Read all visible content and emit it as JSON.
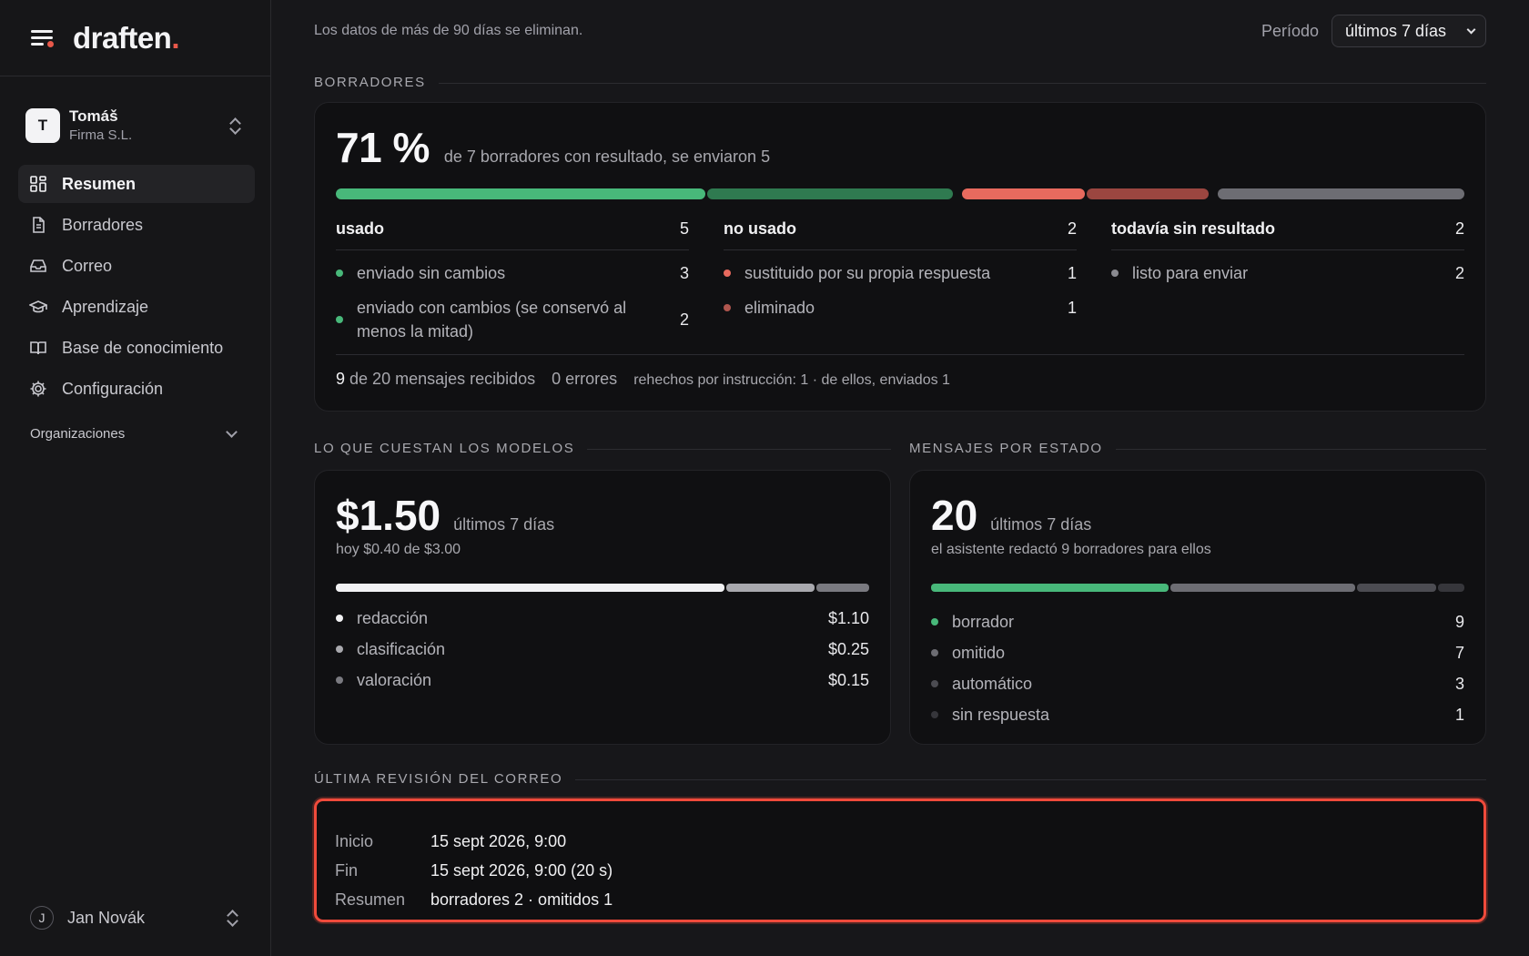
{
  "app": {
    "logo": "draften",
    "logo_dot": "."
  },
  "org": {
    "initial": "T",
    "name": "Tomáš",
    "company": "Firma S.L."
  },
  "nav": {
    "items": [
      {
        "label": "Resumen",
        "icon": "dashboard-icon",
        "active": true
      },
      {
        "label": "Borradores",
        "icon": "document-icon"
      },
      {
        "label": "Correo",
        "icon": "inbox-icon"
      },
      {
        "label": "Aprendizaje",
        "icon": "graduation-cap-icon"
      },
      {
        "label": "Base de conocimiento",
        "icon": "book-icon"
      },
      {
        "label": "Configuración",
        "icon": "gear-icon"
      }
    ],
    "organizations_label": "Organizaciones"
  },
  "user": {
    "initial": "J",
    "name": "Jan Novák"
  },
  "topbar": {
    "retention_note": "Los datos de más de 90 días se eliminan.",
    "period_label": "Período",
    "period_value": "últimos 7 días"
  },
  "drafts": {
    "section_title": "BORRADORES",
    "percent": "71 %",
    "summary": "de 7 borradores con resultado, se enviaron 5",
    "colors": {
      "green": "#48b87a",
      "dark_green": "#2f7a50",
      "coral": "#e86a5e",
      "dark_coral": "#9b4640",
      "gray": "#6d6d73",
      "gray_dot": "#8a8a90"
    },
    "groups": [
      {
        "title": "usado",
        "count": "5",
        "items": [
          {
            "label": "enviado sin cambios",
            "value": "3"
          },
          {
            "label": "enviado con cambios (se conservó al menos la mitad)",
            "value": "2"
          }
        ]
      },
      {
        "title": "no usado",
        "count": "2",
        "items": [
          {
            "label": "sustituido por su propia respuesta",
            "value": "1"
          },
          {
            "label": "eliminado",
            "value": "1"
          }
        ]
      },
      {
        "title": "todavía sin resultado",
        "count": "2",
        "items": [
          {
            "label": "listo para enviar",
            "value": "2"
          }
        ]
      }
    ],
    "footer": {
      "received_count": "9",
      "received_text": "de 20 mensajes recibidos",
      "errors": "0 errores",
      "redone": "rehechos por instrucción: 1 · de ellos, enviados 1"
    }
  },
  "costs": {
    "section_title": "LO QUE CUESTAN LOS MODELOS",
    "total": "$1.50",
    "period": "últimos 7 días",
    "today": "hoy $0.40 de $3.00",
    "items": [
      {
        "label": "redacción",
        "value": "$1.10",
        "amount": 1.1,
        "color": "#f2f2f4"
      },
      {
        "label": "clasificación",
        "value": "$0.25",
        "amount": 0.25,
        "color": "#a9a9ae"
      },
      {
        "label": "valoración",
        "value": "$0.15",
        "amount": 0.15,
        "color": "#7a7a80"
      }
    ]
  },
  "status": {
    "section_title": "MENSAJES POR ESTADO",
    "total": "20",
    "period": "últimos 7 días",
    "subtitle": "el asistente redactó 9 borradores para ellos",
    "items": [
      {
        "label": "borrador",
        "value": "9",
        "count": 9,
        "color": "#48b87a"
      },
      {
        "label": "omitido",
        "value": "7",
        "count": 7,
        "color": "#6d6d73"
      },
      {
        "label": "automático",
        "value": "3",
        "count": 3,
        "color": "#4c4c52"
      },
      {
        "label": "sin respuesta",
        "value": "1",
        "count": 1,
        "color": "#36363b"
      }
    ]
  },
  "review": {
    "section_title": "ÚLTIMA REVISIÓN DEL CORREO",
    "accent": "#ef4a3b",
    "rows": [
      {
        "key": "Inicio",
        "value": "15 sept 2026, 9:00"
      },
      {
        "key": "Fin",
        "value": "15 sept 2026, 9:00 (20 s)"
      },
      {
        "key": "Resumen",
        "value": "borradores 2 · omitidos 1"
      }
    ]
  }
}
